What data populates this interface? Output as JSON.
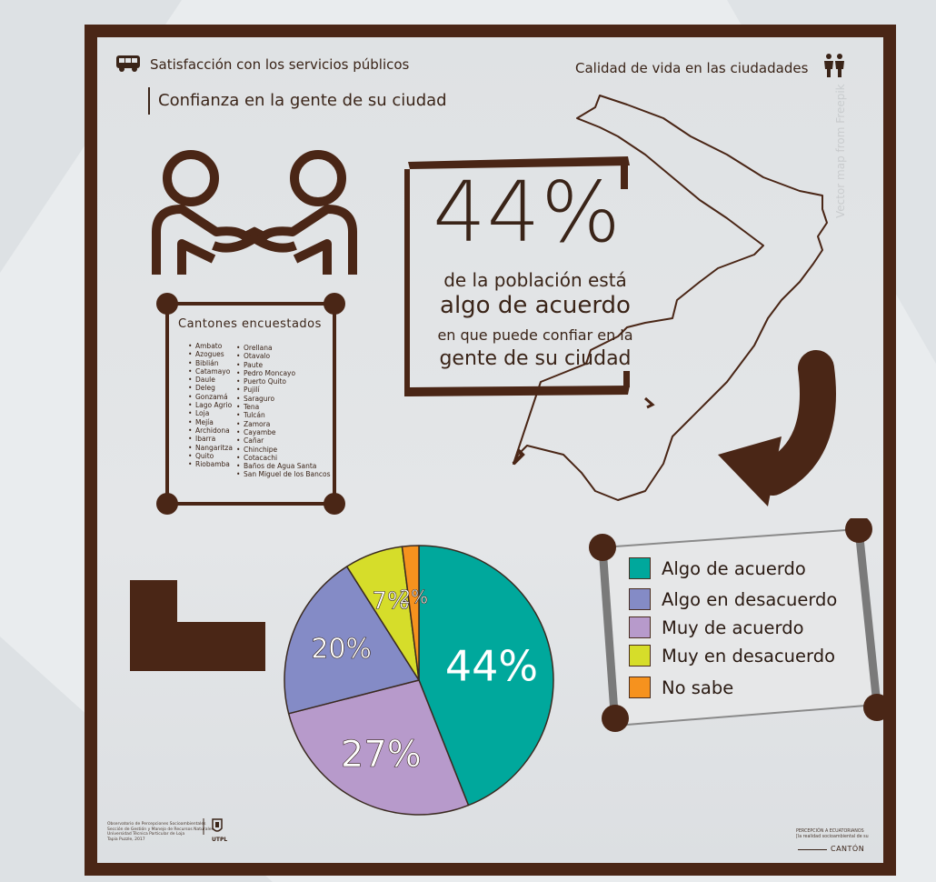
{
  "header": {
    "left_title": "Satisfacción con los servicios públicos",
    "right_title": "Calidad de vida en las ciudadades",
    "subtitle": "Confianza en la gente de su ciudad"
  },
  "stat": {
    "percent": "44%",
    "line1": "de la población está",
    "line2": "algo de acuerdo",
    "line3": "en que puede confiar en la",
    "line4": "gente de su ciudad"
  },
  "cantones": {
    "title": "Cantones encuestados",
    "col1": [
      "Ambato",
      "Azogues",
      "Biblián",
      "Catamayo",
      "Daule",
      "Deleg",
      "Gonzamá",
      "Lago Agrio",
      "Loja",
      "Mejía",
      "Archidona",
      "Ibarra",
      "Nangaritza",
      "Quito",
      "Riobamba"
    ],
    "col2": [
      "Orellana",
      "Otavalo",
      "Paute",
      "Pedro Moncayo",
      "Puerto Quito",
      "Pujilí",
      "Saraguro",
      "Tena",
      "Tulcán",
      "Zamora",
      "Cayambe",
      "Cañar",
      "Chinchipe",
      "Cotacachi",
      "Baños de Agua Santa",
      "San Miguel de los Bancos"
    ]
  },
  "chart_data": {
    "type": "pie",
    "categories": [
      "Algo de acuerdo",
      "Muy de acuerdo",
      "Algo en desacuerdo",
      "Muy en desacuerdo",
      "No sabe"
    ],
    "values": [
      44,
      27,
      20,
      7,
      2
    ],
    "labels": [
      "44%",
      "27%",
      "20%",
      "7%",
      "2%"
    ],
    "colors": [
      "#00a89c",
      "#b79acb",
      "#848bc6",
      "#d6dd2a",
      "#f6921e"
    ],
    "legend_placement": "right",
    "legend": [
      {
        "label": "Algo de acuerdo",
        "color": "#00a89c"
      },
      {
        "label": "Algo en desacuerdo",
        "color": "#848bc6"
      },
      {
        "label": "Muy de acuerdo",
        "color": "#b79acb"
      },
      {
        "label": "Muy en desacuerdo",
        "color": "#d6dd2a"
      },
      {
        "label": "No sabe",
        "color": "#f6921e"
      }
    ]
  },
  "footer": {
    "left_text": [
      "Observatorio de Percepciones Socioambientales",
      "Sección de Gestión y Manejo de Recursos Naturales",
      "Universidad Técnica Particular de Loja",
      "Tapia Puzzle, 2017"
    ],
    "logo_text": "UTPL",
    "right_text": [
      "PERCEPCIÓN A ECUATORIANOS",
      "[la realidad socioambiental de su"
    ],
    "canton_label": "CANTÓN"
  },
  "watermark": "Vector map from Freepik",
  "colors": {
    "brown": "#4a2616",
    "background": "#e2e5e7"
  }
}
